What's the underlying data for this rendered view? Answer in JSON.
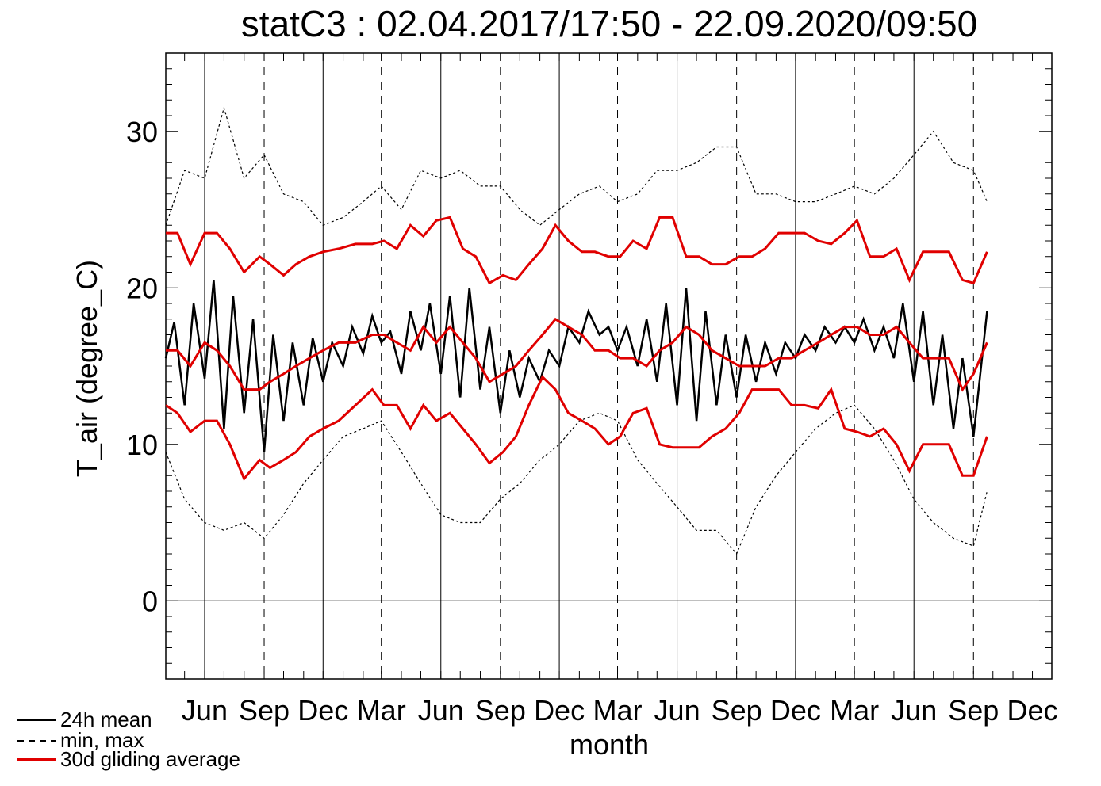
{
  "chart_data": {
    "type": "line",
    "title": "statC3 : 02.04.2017/17:50 - 22.09.2020/09:50",
    "xlabel": "month",
    "ylabel": "T_air (degree_C)",
    "xlim": [
      "2017-04-02",
      "2020-12-31"
    ],
    "ylim": [
      -5,
      35
    ],
    "y_ticks": [
      0,
      10,
      20,
      30
    ],
    "x_tick_labels": [
      "Jun",
      "Sep",
      "Dec",
      "Mar",
      "Jun",
      "Sep",
      "Dec",
      "Mar",
      "Jun",
      "Sep",
      "Dec",
      "Mar",
      "Jun",
      "Sep",
      "Dec"
    ],
    "x_tick_dates": [
      "2017-06-01",
      "2017-09-01",
      "2017-12-01",
      "2018-03-01",
      "2018-06-01",
      "2018-09-01",
      "2018-12-01",
      "2019-03-01",
      "2019-06-01",
      "2019-09-01",
      "2019-12-01",
      "2020-03-01",
      "2020-06-01",
      "2020-09-01",
      "2020-12-01"
    ],
    "vlines_solid": [
      "2017-06-01",
      "2017-12-01",
      "2018-06-01",
      "2018-12-01",
      "2019-06-01",
      "2019-12-01",
      "2020-06-01"
    ],
    "vlines_dashed": [
      "2017-09-01",
      "2018-03-01",
      "2018-09-01",
      "2019-03-01",
      "2019-09-01",
      "2020-03-01",
      "2020-09-01"
    ],
    "hline": 0,
    "legend_position": "bottom-left",
    "series": [
      {
        "name": "24h mean",
        "style": "solid",
        "color": "#000000",
        "x": [
          "2017-04-02",
          "2017-04-15",
          "2017-05-01",
          "2017-05-15",
          "2017-06-01",
          "2017-06-15",
          "2017-07-01",
          "2017-07-15",
          "2017-08-01",
          "2017-08-15",
          "2017-09-01",
          "2017-09-15",
          "2017-10-01",
          "2017-10-15",
          "2017-11-01",
          "2017-11-15",
          "2017-12-01",
          "2017-12-15",
          "2018-01-01",
          "2018-01-15",
          "2018-02-01",
          "2018-02-15",
          "2018-03-01",
          "2018-03-15",
          "2018-04-01",
          "2018-04-15",
          "2018-05-01",
          "2018-05-15",
          "2018-06-01",
          "2018-06-15",
          "2018-07-01",
          "2018-07-15",
          "2018-08-01",
          "2018-08-15",
          "2018-09-01",
          "2018-09-15",
          "2018-10-01",
          "2018-10-15",
          "2018-11-01",
          "2018-11-15",
          "2018-12-01",
          "2018-12-15",
          "2019-01-01",
          "2019-01-15",
          "2019-02-01",
          "2019-02-15",
          "2019-03-01",
          "2019-03-15",
          "2019-04-01",
          "2019-04-15",
          "2019-05-01",
          "2019-05-15",
          "2019-06-01",
          "2019-06-15",
          "2019-07-01",
          "2019-07-15",
          "2019-08-01",
          "2019-08-15",
          "2019-09-01",
          "2019-09-15",
          "2019-10-01",
          "2019-10-15",
          "2019-11-01",
          "2019-11-15",
          "2019-12-01",
          "2019-12-15",
          "2020-01-01",
          "2020-01-15",
          "2020-02-01",
          "2020-02-15",
          "2020-03-01",
          "2020-03-15",
          "2020-04-01",
          "2020-04-15",
          "2020-05-01",
          "2020-05-15",
          "2020-06-01",
          "2020-06-15",
          "2020-07-01",
          "2020-07-15",
          "2020-08-01",
          "2020-08-15",
          "2020-09-01",
          "2020-09-22"
        ],
        "y": [
          15.5,
          17.8,
          12.5,
          19.0,
          14.2,
          20.5,
          11.0,
          19.5,
          12.0,
          18.0,
          9.5,
          17.0,
          11.5,
          16.5,
          12.5,
          16.8,
          14.0,
          16.5,
          15.0,
          17.5,
          15.8,
          18.2,
          16.5,
          17.2,
          14.5,
          18.5,
          16.0,
          19.0,
          14.5,
          19.5,
          13.0,
          20.0,
          13.5,
          17.5,
          12.0,
          16.0,
          13.0,
          15.5,
          14.0,
          16.0,
          15.0,
          17.5,
          16.5,
          18.5,
          17.0,
          17.5,
          16.0,
          17.5,
          15.0,
          18.0,
          14.0,
          19.0,
          12.5,
          20.0,
          11.5,
          18.5,
          12.5,
          17.0,
          13.0,
          17.0,
          14.0,
          16.5,
          14.5,
          16.5,
          15.5,
          17.0,
          16.0,
          17.5,
          16.5,
          17.5,
          16.5,
          18.0,
          16.0,
          17.5,
          15.5,
          19.0,
          14.0,
          18.5,
          12.5,
          17.0,
          11.0,
          15.5,
          10.5,
          18.5
        ]
      },
      {
        "name": "min, max",
        "style": "dashed",
        "color": "#000000",
        "x": [
          "2017-04-02",
          "2017-05-01",
          "2017-06-01",
          "2017-07-01",
          "2017-08-01",
          "2017-09-01",
          "2017-10-01",
          "2017-11-01",
          "2017-12-01",
          "2018-01-01",
          "2018-02-01",
          "2018-03-01",
          "2018-04-01",
          "2018-05-01",
          "2018-06-01",
          "2018-07-01",
          "2018-08-01",
          "2018-09-01",
          "2018-10-01",
          "2018-11-01",
          "2018-12-01",
          "2019-01-01",
          "2019-02-01",
          "2019-03-01",
          "2019-04-01",
          "2019-05-01",
          "2019-06-01",
          "2019-07-01",
          "2019-08-01",
          "2019-09-01",
          "2019-10-01",
          "2019-11-01",
          "2019-12-01",
          "2020-01-01",
          "2020-02-01",
          "2020-03-01",
          "2020-04-01",
          "2020-05-01",
          "2020-06-01",
          "2020-07-01",
          "2020-08-01",
          "2020-09-01",
          "2020-09-22"
        ],
        "max": [
          24.0,
          27.5,
          27.0,
          31.5,
          27.0,
          28.5,
          26.0,
          25.5,
          24.0,
          24.5,
          25.5,
          26.5,
          25.0,
          27.5,
          27.0,
          27.5,
          26.5,
          26.5,
          25.0,
          24.0,
          25.0,
          26.0,
          26.5,
          25.5,
          26.0,
          27.5,
          27.5,
          28.0,
          29.0,
          29.0,
          26.0,
          26.0,
          25.5,
          25.5,
          26.0,
          26.5,
          26.0,
          27.0,
          28.5,
          30.0,
          28.0,
          27.5,
          25.5
        ],
        "min": [
          9.5,
          6.5,
          5.0,
          4.5,
          5.0,
          4.0,
          5.5,
          7.5,
          9.0,
          10.5,
          11.0,
          11.5,
          9.5,
          7.5,
          5.5,
          5.0,
          5.0,
          6.5,
          7.5,
          9.0,
          10.0,
          11.5,
          12.0,
          11.5,
          9.0,
          7.5,
          6.0,
          4.5,
          4.5,
          3.0,
          6.0,
          8.0,
          9.5,
          11.0,
          12.0,
          12.5,
          11.0,
          9.0,
          6.5,
          5.0,
          4.0,
          3.5,
          7.0
        ]
      },
      {
        "name": "30d gliding average",
        "style": "solid",
        "color": "#e00000",
        "x": [
          "2017-04-02",
          "2017-04-20",
          "2017-05-10",
          "2017-06-01",
          "2017-06-20",
          "2017-07-10",
          "2017-08-01",
          "2017-08-25",
          "2017-09-10",
          "2017-10-01",
          "2017-10-20",
          "2017-11-10",
          "2017-12-01",
          "2017-12-25",
          "2018-01-20",
          "2018-02-15",
          "2018-03-05",
          "2018-03-25",
          "2018-04-15",
          "2018-05-05",
          "2018-05-25",
          "2018-06-15",
          "2018-07-05",
          "2018-07-25",
          "2018-08-15",
          "2018-09-05",
          "2018-09-25",
          "2018-10-15",
          "2018-11-05",
          "2018-11-25",
          "2018-12-15",
          "2019-01-05",
          "2019-01-25",
          "2019-02-15",
          "2019-03-05",
          "2019-03-25",
          "2019-04-15",
          "2019-05-05",
          "2019-05-25",
          "2019-06-15",
          "2019-07-05",
          "2019-07-25",
          "2019-08-15",
          "2019-09-05",
          "2019-09-25",
          "2019-10-15",
          "2019-11-05",
          "2019-11-25",
          "2019-12-15",
          "2020-01-05",
          "2020-01-25",
          "2020-02-15",
          "2020-03-05",
          "2020-03-25",
          "2020-04-15",
          "2020-05-05",
          "2020-05-25",
          "2020-06-15",
          "2020-07-05",
          "2020-07-25",
          "2020-08-15",
          "2020-09-01",
          "2020-09-22"
        ],
        "mean": [
          16.0,
          16.0,
          15.0,
          16.5,
          16.0,
          15.0,
          13.5,
          13.5,
          14.0,
          14.5,
          15.0,
          15.5,
          16.0,
          16.5,
          16.5,
          17.0,
          17.0,
          16.5,
          16.0,
          17.5,
          16.5,
          17.5,
          16.5,
          15.5,
          14.0,
          14.5,
          15.0,
          16.0,
          17.0,
          18.0,
          17.5,
          17.0,
          16.0,
          16.0,
          15.5,
          15.5,
          15.0,
          16.0,
          16.5,
          17.5,
          17.0,
          16.0,
          15.5,
          15.0,
          15.0,
          15.0,
          15.5,
          15.5,
          16.0,
          16.5,
          17.0,
          17.5,
          17.5,
          17.0,
          17.0,
          17.5,
          16.5,
          15.5,
          15.5,
          15.5,
          13.5,
          14.5,
          16.5
        ],
        "max": [
          23.5,
          23.5,
          21.5,
          23.5,
          23.5,
          22.5,
          21.0,
          22.0,
          21.5,
          20.8,
          21.5,
          22.0,
          22.3,
          22.5,
          22.8,
          22.8,
          23.0,
          22.5,
          24.0,
          23.3,
          24.3,
          24.5,
          22.5,
          22.0,
          20.3,
          20.8,
          20.5,
          21.5,
          22.5,
          24.0,
          23.0,
          22.3,
          22.3,
          22.0,
          22.0,
          23.0,
          22.5,
          24.5,
          24.5,
          22.0,
          22.0,
          21.5,
          21.5,
          22.0,
          22.0,
          22.5,
          23.5,
          23.5,
          23.5,
          23.0,
          22.8,
          23.5,
          24.3,
          22.0,
          22.0,
          22.5,
          20.5,
          22.3,
          22.3,
          22.3,
          20.5,
          20.3,
          22.3
        ],
        "min": [
          12.5,
          12.0,
          10.8,
          11.5,
          11.5,
          10.0,
          7.8,
          9.0,
          8.5,
          9.0,
          9.5,
          10.5,
          11.0,
          11.5,
          12.5,
          13.5,
          12.5,
          12.5,
          11.0,
          12.5,
          11.5,
          12.0,
          11.0,
          10.0,
          8.8,
          9.5,
          10.5,
          12.5,
          14.3,
          13.5,
          12.0,
          11.5,
          11.0,
          10.0,
          10.5,
          12.0,
          12.3,
          10.0,
          9.8,
          9.8,
          9.8,
          10.5,
          11.0,
          12.0,
          13.5,
          13.5,
          13.5,
          12.5,
          12.5,
          12.3,
          13.5,
          11.0,
          10.8,
          10.5,
          11.0,
          10.0,
          8.3,
          10.0,
          10.0,
          10.0,
          8.0,
          8.0,
          10.5
        ]
      }
    ]
  }
}
